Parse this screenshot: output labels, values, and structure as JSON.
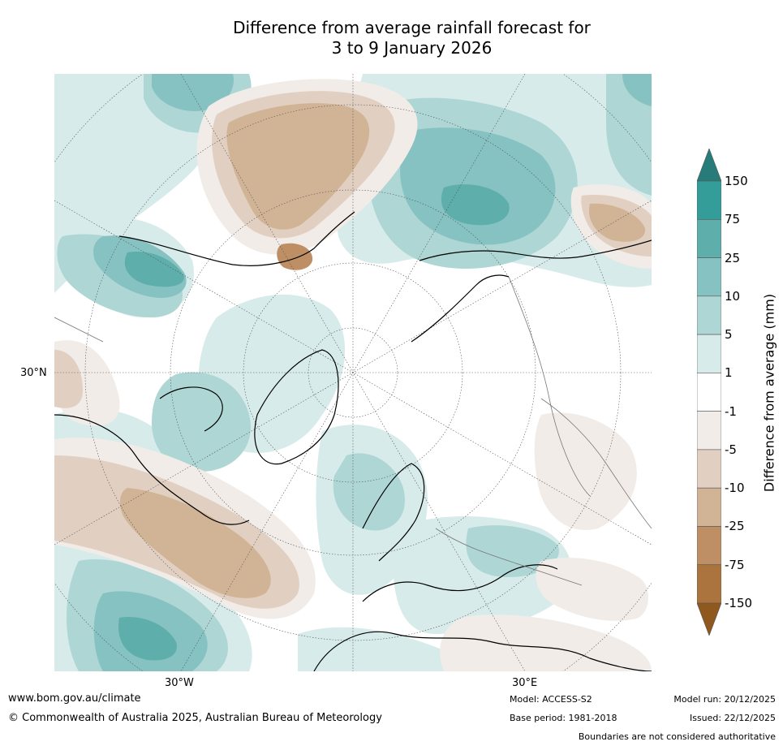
{
  "title": {
    "line1": "Difference from average rainfall forecast for",
    "line2": "3 to 9 January 2026"
  },
  "map": {
    "projection": "north-polar-stereographic",
    "lat_label": "30°N",
    "lon_labels": [
      "30°W",
      "30°E"
    ]
  },
  "colorbar": {
    "label": "Difference from average (mm)",
    "ticks": [
      "150",
      "75",
      "25",
      "10",
      "5",
      "1",
      "-1",
      "-5",
      "-10",
      "-25",
      "-75",
      "-150"
    ],
    "colors": {
      "gt150": "#277c7a",
      "75-150": "#349d99",
      "25-75": "#5eaeac",
      "10-25": "#86c2c1",
      "5-10": "#aed6d5",
      "1-5": "#d6ebea",
      "-1-1": "#ffffff",
      "-5--1": "#f1ece7",
      "-10--5": "#e1d0c1",
      "-25--10": "#d1b496",
      "-75--25": "#be8f64",
      "-150--75": "#ab733d",
      "lt-150": "#8f581f"
    }
  },
  "footer": {
    "website": "www.bom.gov.au/climate",
    "copyright": "© Commonwealth of Australia 2025, Australian Bureau of Meteorology",
    "model": "Model: ACCESS-S2",
    "base_period": "Base period: 1981-2018",
    "model_run": "Model run: 20/12/2025",
    "issued": "Issued: 22/12/2025",
    "disclaimer": "Boundaries are not considered authoritative"
  }
}
